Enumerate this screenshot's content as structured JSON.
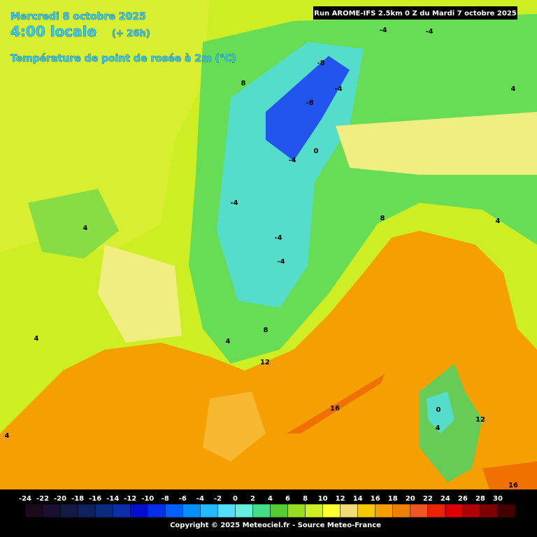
{
  "header": {
    "date": "Mercredi 8 octobre 2025",
    "time": "4:00 locale",
    "lead": "(+ 26h)",
    "parameter": "Température de point de rosée à 2m (°C)",
    "run": "Run AROME-IFS 2.5km 0 Z du Mardi 7 octobre 2025"
  },
  "map_labels": [
    -4,
    -4,
    -8,
    -4,
    -8,
    0,
    -4,
    -4,
    -4,
    -4,
    4,
    4,
    4,
    8,
    8,
    8,
    4,
    4,
    4,
    12,
    16,
    0,
    12,
    4,
    16
  ],
  "legend": {
    "values": [
      -24,
      -22,
      -20,
      -18,
      -16,
      -14,
      -12,
      -10,
      -8,
      -6,
      -4,
      -2,
      0,
      2,
      4,
      6,
      8,
      10,
      12,
      14,
      16,
      18,
      20,
      22,
      24,
      26,
      28,
      30
    ],
    "colors": [
      "#1a0a1a",
      "#1c1030",
      "#141a44",
      "#0e2260",
      "#0a2b80",
      "#0a2fa8",
      "#0010cc",
      "#0030ee",
      "#0060ff",
      "#0090ff",
      "#22bbff",
      "#55ddff",
      "#66eedd",
      "#44dd88",
      "#55cc33",
      "#99dd22",
      "#ccee22",
      "#ffff33",
      "#eedd77",
      "#f5c800",
      "#f5a000",
      "#f08000",
      "#ee5522",
      "#ee2200",
      "#dd0000",
      "#b00000",
      "#800000",
      "#440000"
    ]
  },
  "footer": {
    "copyright": "Copyright © 2025 Meteociel.fr - Source Meteo-France"
  }
}
